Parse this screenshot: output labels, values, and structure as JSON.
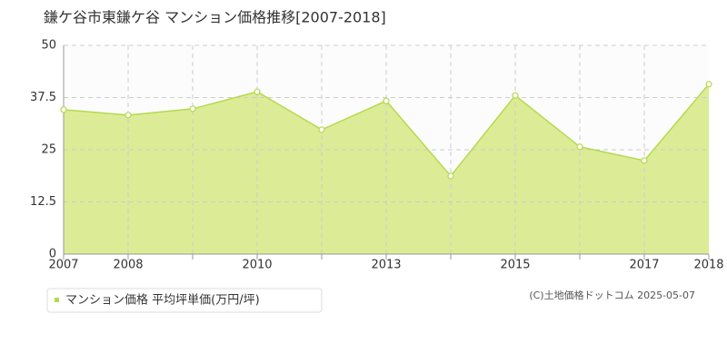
{
  "chart_data": {
    "type": "area",
    "title": "鎌ケ谷市東鎌ケ谷 マンション価格推移[2007-2018]",
    "categories": [
      "2007",
      "2008",
      null,
      "2010",
      null,
      "2013",
      null,
      "2015",
      null,
      "2017",
      "2018"
    ],
    "series": [
      {
        "name": "マンション価格 平均坪単価(万円/坪)",
        "color": "#b5d94e",
        "fill": "#dcec96",
        "values": [
          34.6,
          33.3,
          34.8,
          38.9,
          29.8,
          36.7,
          18.7,
          38.0,
          25.7,
          22.4,
          40.7
        ]
      }
    ],
    "ylim": [
      0,
      50
    ],
    "yticks": [
      0,
      12.5,
      25,
      37.5,
      50
    ],
    "grid": true,
    "credit": "(C)土地価格ドットコム 2025-05-07"
  }
}
